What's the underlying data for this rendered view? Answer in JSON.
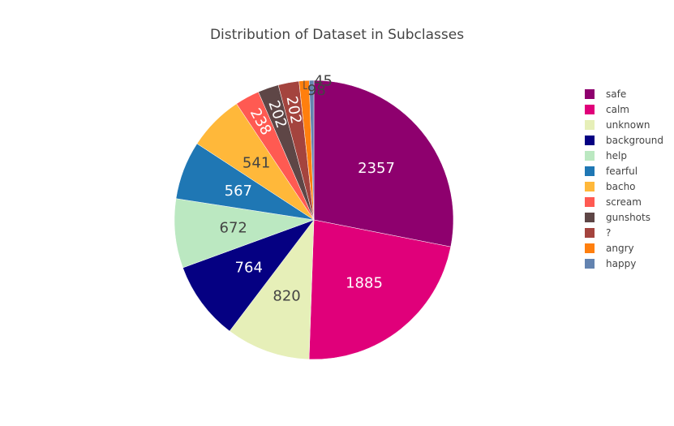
{
  "chart_data": {
    "type": "pie",
    "title": "Distribution of Dataset in Subclasses",
    "legend_position": "right",
    "slices": [
      {
        "label": "safe",
        "value": 2357,
        "color": "#8e006e"
      },
      {
        "label": "calm",
        "value": 1885,
        "color": "#e0007a"
      },
      {
        "label": "unknown",
        "value": 820,
        "color": "#e6efb8"
      },
      {
        "label": "background",
        "value": 764,
        "color": "#050082"
      },
      {
        "label": "help",
        "value": 672,
        "color": "#bbe8c1"
      },
      {
        "label": "fearful",
        "value": 567,
        "color": "#1f77b4"
      },
      {
        "label": "bacho",
        "value": 541,
        "color": "#ffb83a"
      },
      {
        "label": "scream",
        "value": 238,
        "color": "#ff5a52"
      },
      {
        "label": "gunshots",
        "value": 202,
        "color": "#5e4646"
      },
      {
        "label": "?",
        "value": 202,
        "color": "#a4443e"
      },
      {
        "label": "angry",
        "value": 98,
        "color": "#ff7f0e"
      },
      {
        "label": "happy",
        "value": 45,
        "color": "#6383b0"
      }
    ]
  }
}
